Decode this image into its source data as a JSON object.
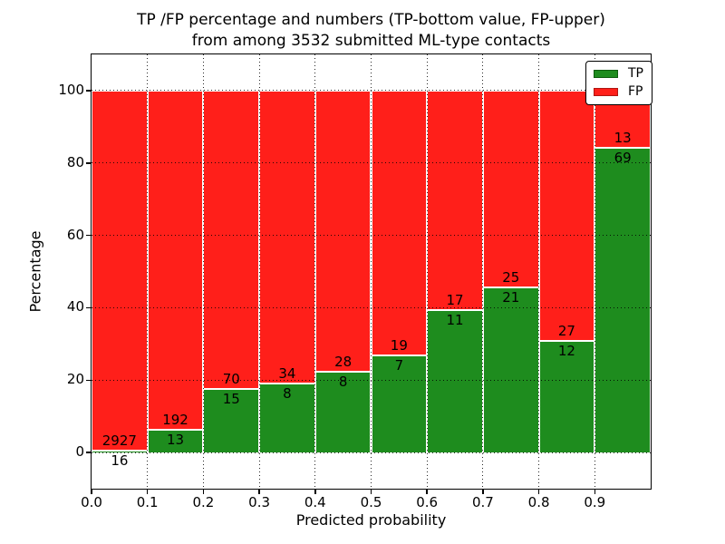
{
  "title": {
    "line1": "TP /FP percentage and numbers (TP-bottom value, FP-upper)",
    "line2": "from among 3532 submitted ML-type contacts"
  },
  "axes": {
    "ylabel": "Percentage",
    "xlabel": "Predicted probability",
    "yticks": [
      0,
      20,
      40,
      60,
      80,
      100
    ],
    "xticks": [
      "0.0",
      "0.1",
      "0.2",
      "0.3",
      "0.4",
      "0.5",
      "0.6",
      "0.7",
      "0.8",
      "0.9"
    ],
    "ylim": [
      -10,
      110
    ],
    "xlim": [
      0.0,
      1.0
    ],
    "grid_style": "dotted"
  },
  "legend": {
    "position": "upper right",
    "items": [
      {
        "label": "TP",
        "color": "#1e8c1e",
        "edge": "#0d5c0d"
      },
      {
        "label": "FP",
        "color": "#ff1f1a",
        "edge": "#b01510"
      }
    ]
  },
  "colors": {
    "tp": "#1e8c1e",
    "fp": "#ff1f1a",
    "background": "#ffffff",
    "text": "#000000"
  },
  "chart_data": {
    "type": "bar",
    "stacked": true,
    "normalized": "each bin stacked to 100%",
    "title": "TP /FP percentage and numbers (TP-bottom value, FP-upper) from among 3532 submitted ML-type contacts",
    "xlabel": "Predicted probability",
    "ylabel": "Percentage",
    "xlim": [
      0.0,
      1.0
    ],
    "ylim": [
      -10,
      110
    ],
    "yticks": [
      0,
      20,
      40,
      60,
      80,
      100
    ],
    "xticks": [
      0.0,
      0.1,
      0.2,
      0.3,
      0.4,
      0.5,
      0.6,
      0.7,
      0.8,
      0.9
    ],
    "grid": "dotted black",
    "legend_position": "upper right",
    "total_contacts": 3532,
    "categories": [
      "0.0-0.1",
      "0.1-0.2",
      "0.2-0.3",
      "0.3-0.4",
      "0.4-0.5",
      "0.5-0.6",
      "0.6-0.7",
      "0.7-0.8",
      "0.8-0.9",
      "0.9-1.0"
    ],
    "series": [
      {
        "name": "TP",
        "color": "#1e8c1e",
        "counts": [
          16,
          13,
          15,
          8,
          8,
          7,
          11,
          21,
          12,
          69
        ],
        "percent": [
          0.5,
          6.3,
          17.6,
          19.0,
          22.2,
          26.9,
          39.3,
          45.7,
          30.8,
          84.1
        ]
      },
      {
        "name": "FP",
        "color": "#ff1f1a",
        "counts": [
          2927,
          192,
          70,
          34,
          28,
          19,
          17,
          25,
          27,
          13
        ],
        "percent": [
          99.5,
          93.7,
          82.4,
          81.0,
          77.8,
          73.1,
          60.7,
          54.3,
          69.2,
          15.9
        ]
      }
    ]
  }
}
